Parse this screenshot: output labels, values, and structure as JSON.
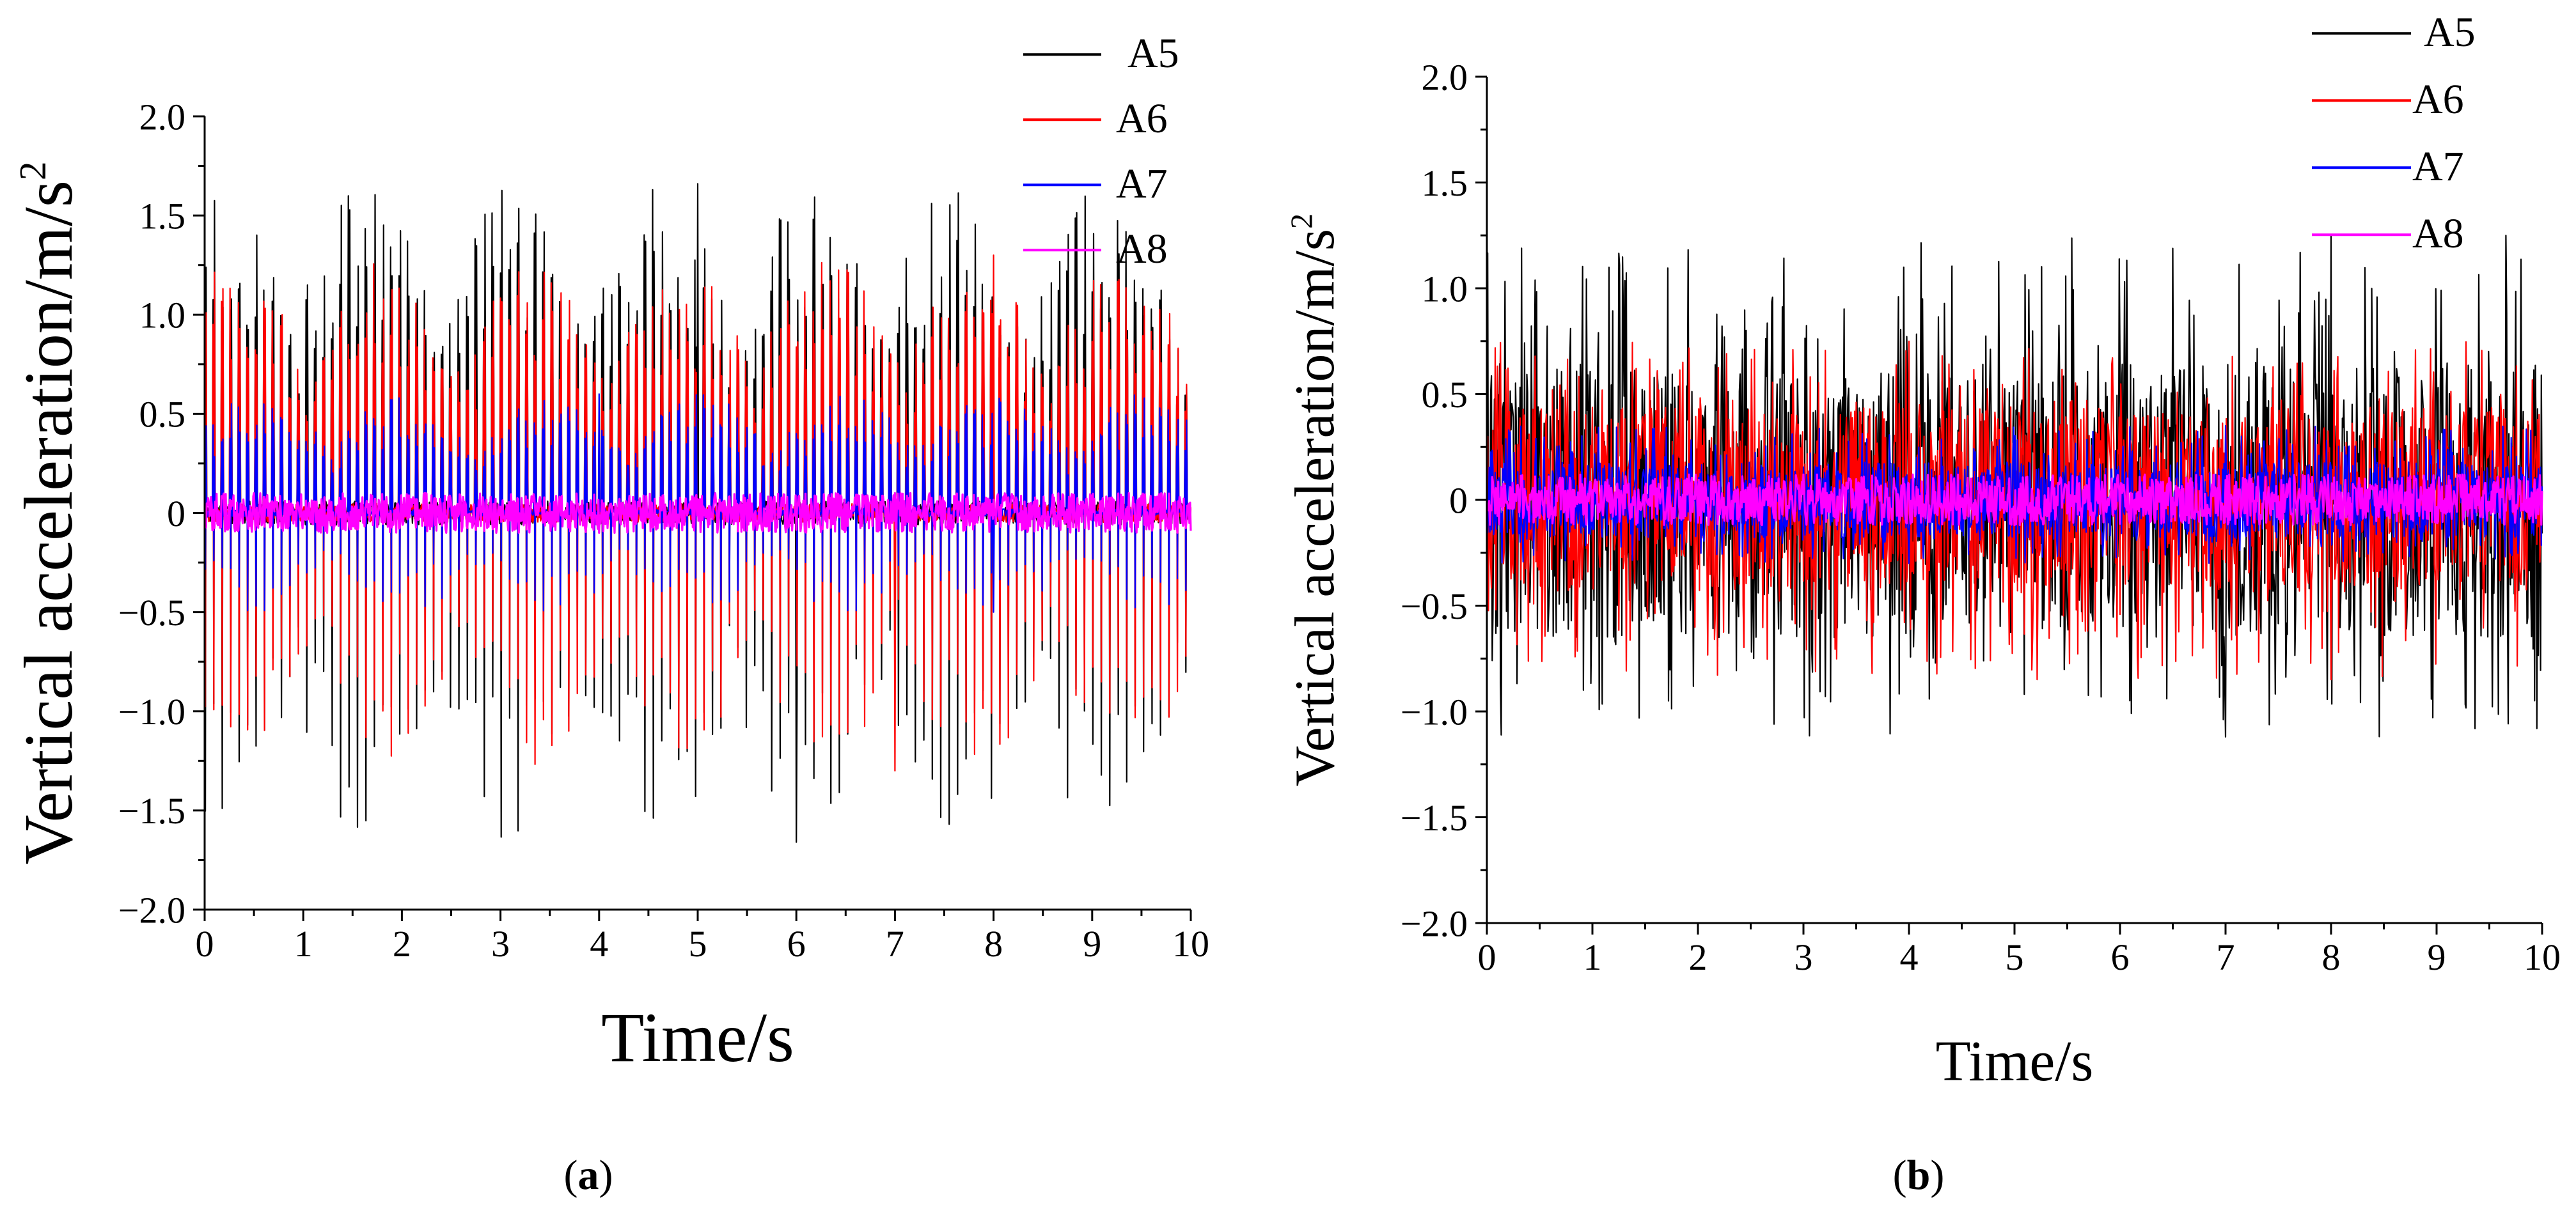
{
  "chart_data": [
    {
      "type": "line",
      "panel_label": "a",
      "xlabel": "Time/s",
      "ylabel": "Vertical acceleration/m/s",
      "ylabel_superscript": "2",
      "xlim": [
        0,
        10
      ],
      "ylim": [
        -2.0,
        2.0
      ],
      "xticks": [
        "0",
        "1",
        "2",
        "3",
        "4",
        "5",
        "6",
        "7",
        "8",
        "9",
        "10"
      ],
      "yticks": [
        "2.0",
        "1.5",
        "1.0",
        "0.5",
        "0",
        "-0.5",
        "-1.0",
        "-1.5",
        "-2.0"
      ],
      "legend_position": "top-right, outside plot",
      "series": [
        {
          "name": "A5",
          "color": "#000000",
          "amplitude_range": [
            -1.66,
            1.66
          ],
          "peak_max": 1.66,
          "peak_min": -1.66,
          "pattern": "periodic spikes"
        },
        {
          "name": "A6",
          "color": "#ff0000",
          "amplitude_range": [
            -1.3,
            1.3
          ],
          "peak_max": 1.3,
          "peak_min": -1.3,
          "pattern": "periodic spikes"
        },
        {
          "name": "A7",
          "color": "#0000ff",
          "amplitude_range": [
            -0.5,
            0.6
          ],
          "peak_max": 0.6,
          "peak_min": -0.5,
          "pattern": "periodic spikes"
        },
        {
          "name": "A8",
          "color": "#ff00ff",
          "amplitude_range": [
            -0.1,
            0.1
          ],
          "peak_max": 0.1,
          "peak_min": -0.1,
          "pattern": "dense band"
        }
      ]
    },
    {
      "type": "line",
      "panel_label": "b",
      "xlabel": "Time/s",
      "ylabel": "Vertical acceleration/m/s",
      "ylabel_superscript": "2",
      "xlim": [
        0,
        10
      ],
      "ylim": [
        -2.0,
        2.0
      ],
      "xticks": [
        "0",
        "1",
        "2",
        "3",
        "4",
        "5",
        "6",
        "7",
        "8",
        "9",
        "10"
      ],
      "yticks": [
        "2.0",
        "1.5",
        "1.0",
        "0.5",
        "0",
        "-0.5",
        "-1.0",
        "-1.5",
        "-2.0"
      ],
      "legend_position": "top-right, outside plot",
      "series": [
        {
          "name": "A5",
          "color": "#000000",
          "amplitude_range": [
            -1.12,
            1.25
          ],
          "peak_max": 1.25,
          "peak_min": -1.12,
          "pattern": "dense noise"
        },
        {
          "name": "A6",
          "color": "#ff0000",
          "amplitude_range": [
            -0.85,
            0.75
          ],
          "peak_max": 0.75,
          "peak_min": -0.85,
          "pattern": "dense noise"
        },
        {
          "name": "A7",
          "color": "#0000ff",
          "amplitude_range": [
            -0.3,
            0.35
          ],
          "peak_max": 0.35,
          "peak_min": -0.3,
          "pattern": "dense noise"
        },
        {
          "name": "A8",
          "color": "#ff00ff",
          "amplitude_range": [
            -0.12,
            0.12
          ],
          "peak_max": 0.12,
          "peak_min": -0.12,
          "pattern": "dense band"
        }
      ]
    }
  ]
}
